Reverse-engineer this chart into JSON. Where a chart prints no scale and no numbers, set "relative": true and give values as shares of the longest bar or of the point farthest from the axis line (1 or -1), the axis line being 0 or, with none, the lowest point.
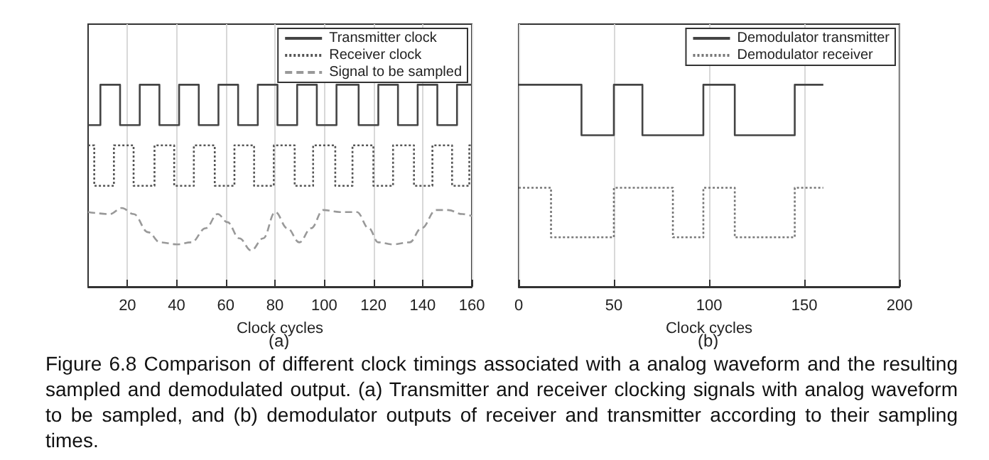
{
  "chart_data": [
    {
      "type": "step",
      "relative": true,
      "xlabel": "Clock cycles",
      "xlim": [
        4,
        160
      ],
      "xticks": [
        20,
        40,
        60,
        80,
        100,
        120,
        140,
        160
      ],
      "grid": "x",
      "legend": "top right",
      "marker": "none",
      "annotations": [
        "(a)",
        "Figure 6.8  Comparison of different clock timings associated with a analog waveform and the resulting sampled and demodulated output. (a) Transmitter and receiver clocking signals with analog waveform to be sampled, and (b) demodulator outputs of receiver and transmitter according to their sampling times."
      ],
      "series": [
        {
          "name": "Transmitter clock",
          "color": "#444444",
          "line_style": "solid",
          "x": [
            4,
            9,
            17,
            25,
            33,
            41,
            49,
            57,
            65,
            73,
            81,
            89,
            97,
            105,
            114,
            122,
            130,
            138,
            146,
            154,
            160
          ],
          "values": [
            0.8,
            1,
            0.8,
            1,
            0.8,
            1,
            0.8,
            1,
            0.8,
            1,
            0.8,
            1,
            0.8,
            1,
            0.8,
            1,
            0.8,
            1,
            0.8,
            1,
            1
          ]
        },
        {
          "name": "Receiver clock",
          "color": "#555555",
          "line_style": "dotted",
          "x": [
            4,
            6.5,
            14.5,
            22.5,
            31,
            39,
            47,
            55.5,
            63.5,
            71.5,
            79.5,
            88,
            95.5,
            104.5,
            111.5,
            120,
            128,
            136.5,
            144,
            152,
            159,
            160
          ],
          "values": [
            0.7,
            0.5,
            0.7,
            0.5,
            0.7,
            0.5,
            0.7,
            0.5,
            0.7,
            0.5,
            0.7,
            0.5,
            0.7,
            0.5,
            0.7,
            0.5,
            0.7,
            0.5,
            0.7,
            0.5,
            0.7,
            0.7
          ]
        },
        {
          "name": "Signal to be sampled",
          "type": "line",
          "color": "#999999",
          "line_style": "dashed",
          "x": [
            4,
            12.8,
            17.7,
            22.5,
            28.4,
            33.3,
            40.1,
            46,
            51.8,
            56.7,
            60.6,
            65.5,
            70.3,
            75.2,
            80.1,
            85,
            89.9,
            94.7,
            99.6,
            106.4,
            113.3,
            118.1,
            122,
            127.9,
            134.7,
            139.6,
            145.5,
            150.3,
            156.2,
            160
          ],
          "values": [
            0.37,
            0.36,
            0.39,
            0.36,
            0.27,
            0.22,
            0.21,
            0.22,
            0.29,
            0.36,
            0.32,
            0.24,
            0.18,
            0.24,
            0.37,
            0.29,
            0.22,
            0.29,
            0.38,
            0.37,
            0.37,
            0.29,
            0.22,
            0.21,
            0.22,
            0.29,
            0.38,
            0.38,
            0.36,
            0.35
          ]
        }
      ]
    },
    {
      "type": "step",
      "relative": true,
      "xlabel": "Clock cycles",
      "xlim": [
        0,
        200
      ],
      "xticks": [
        0,
        50,
        100,
        150,
        200
      ],
      "grid": "x",
      "legend": "top right",
      "marker": "none",
      "annotations": [
        "(b)"
      ],
      "series": [
        {
          "name": "Demodulator transmitter",
          "color": "#444444",
          "line_style": "solid",
          "x": [
            0,
            33,
            50,
            65,
            97,
            113.5,
            145,
            160
          ],
          "values": [
            1,
            0.75,
            1,
            0.75,
            1,
            0.75,
            1,
            1
          ]
        },
        {
          "name": "Demodulator receiver",
          "color": "#777777",
          "line_style": "dotted",
          "x": [
            0,
            17,
            50,
            81,
            97,
            113.5,
            145,
            160
          ],
          "values": [
            0.49,
            0.245,
            0.49,
            0.245,
            0.49,
            0.245,
            0.49,
            0.49
          ]
        }
      ]
    }
  ]
}
